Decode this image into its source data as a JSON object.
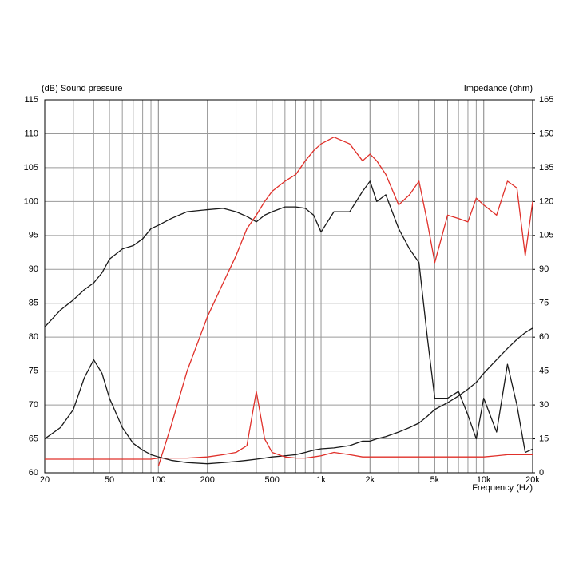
{
  "chart_data": {
    "type": "line",
    "y_title": "(dB)  Sound pressure",
    "y2_title": "Impedance  (ohm)",
    "x_title": "Frequency  (Hz)",
    "log_x": true,
    "grid": true,
    "x": [
      20,
      25,
      30,
      35,
      40,
      45,
      50,
      60,
      70,
      80,
      90,
      100,
      120,
      150,
      200,
      250,
      300,
      350,
      400,
      450,
      500,
      600,
      700,
      800,
      900,
      1000,
      1200,
      1500,
      1800,
      2000,
      2200,
      2500,
      3000,
      3500,
      4000,
      4500,
      5000,
      6000,
      7000,
      8000,
      9000,
      10000,
      12000,
      14000,
      16000,
      18000,
      20000
    ],
    "xlim": [
      20,
      20000
    ],
    "xticks": [
      20,
      50,
      100,
      200,
      500,
      {
        "value": 1000,
        "label": "1k"
      },
      {
        "value": 2000,
        "label": "2k"
      },
      {
        "value": 5000,
        "label": "5k"
      },
      {
        "value": 10000,
        "label": "10k"
      },
      {
        "value": 20000,
        "label": "20k"
      }
    ],
    "ylim": [
      60,
      115
    ],
    "yticks": [
      60,
      65,
      70,
      75,
      80,
      85,
      90,
      95,
      100,
      105,
      110,
      115
    ],
    "y2lim": [
      0,
      165
    ],
    "y2ticks": [
      0,
      15,
      30,
      45,
      60,
      75,
      90,
      105,
      120,
      135,
      150,
      165
    ],
    "series": [
      {
        "color": "#1a1a1a",
        "values": [
          81.5,
          84,
          85.5,
          87,
          88,
          89.5,
          91.5,
          93,
          93.5,
          94.5,
          96,
          96.5,
          97.5,
          98.5,
          98.8,
          99,
          98.5,
          97.8,
          97,
          98,
          98.5,
          99.2,
          99.2,
          99,
          98,
          95.5,
          98.5,
          98.5,
          101.5,
          103,
          100,
          101,
          96,
          93,
          91,
          80,
          71,
          71,
          72,
          68.5,
          65,
          71,
          66,
          76,
          70,
          63,
          63.5
        ]
      },
      {
        "color": "#e0302a",
        "values": [
          null,
          null,
          null,
          null,
          null,
          null,
          null,
          null,
          null,
          null,
          null,
          61,
          67,
          75,
          83,
          88,
          92,
          96,
          98,
          100,
          101.5,
          103,
          104,
          106,
          107.5,
          108.5,
          109.5,
          108.5,
          106,
          107,
          106,
          104,
          99.5,
          101,
          103,
          97,
          91,
          98,
          97.5,
          97,
          100.5,
          99.5,
          98,
          103,
          102,
          92,
          100
        ]
      },
      {
        "color": "#1a1a1a",
        "axis": "y2",
        "values": [
          15,
          20,
          28,
          42,
          50,
          44,
          33,
          20,
          13,
          10,
          8,
          7,
          5.5,
          4.5,
          4,
          4.5,
          5,
          5.5,
          6,
          6.5,
          7,
          7.5,
          8,
          9,
          10,
          10.6,
          11,
          12,
          14,
          14,
          15,
          16,
          18,
          20,
          22,
          25,
          28,
          31,
          34,
          37,
          40,
          44,
          50,
          55,
          59,
          62,
          64
        ]
      },
      {
        "color": "#e0302a",
        "axis": "y2",
        "values": [
          6,
          6,
          6,
          6,
          6,
          6,
          6,
          6,
          6,
          6,
          6,
          6.5,
          6.5,
          6.5,
          7,
          8,
          9,
          12,
          36,
          15,
          9,
          7,
          6.5,
          6.5,
          7,
          7.5,
          9,
          8,
          7,
          7,
          7,
          7,
          7,
          7,
          7,
          7,
          7,
          7,
          7,
          7,
          7,
          7,
          7.5,
          8,
          8,
          8,
          8
        ]
      }
    ]
  }
}
